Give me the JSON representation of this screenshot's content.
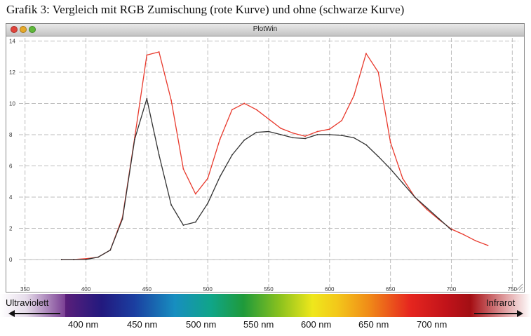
{
  "caption": "Grafik 3: Vergleich mit RGB Zumischung (rote Kurve) und ohne (schwarze Kurve)",
  "window": {
    "title": "PlotWin"
  },
  "colors": {
    "red_curve": "#e8392c",
    "black_curve": "#333333",
    "grid": "#bdbdbd"
  },
  "chart_data": {
    "type": "line",
    "title": "",
    "xlabel": "",
    "ylabel": "",
    "xlim": [
      345,
      755
    ],
    "ylim": [
      -1.8,
      14.2
    ],
    "grid": true,
    "xticks": [
      350,
      400,
      450,
      500,
      550,
      600,
      650,
      700,
      750
    ],
    "yticks": [
      0,
      2,
      4,
      6,
      8,
      10,
      12,
      14
    ],
    "series": [
      {
        "color": "#e8392c",
        "x": [
          380,
          390,
          400,
          410,
          420,
          430,
          440,
          450,
          460,
          470,
          480,
          490,
          500,
          510,
          520,
          530,
          540,
          550,
          560,
          570,
          580,
          590,
          600,
          610,
          620,
          630,
          640,
          650,
          660,
          670,
          680,
          690,
          700,
          710,
          720,
          730
        ],
        "y": [
          0.0,
          0.0,
          0.05,
          0.15,
          0.6,
          2.7,
          7.8,
          13.1,
          13.3,
          10.2,
          5.8,
          4.2,
          5.2,
          7.7,
          9.6,
          10.0,
          9.6,
          9.0,
          8.4,
          8.1,
          7.9,
          8.2,
          8.35,
          8.9,
          10.5,
          13.2,
          12.0,
          7.5,
          5.2,
          4.0,
          3.2,
          2.55,
          1.95,
          1.6,
          1.2,
          0.9
        ]
      },
      {
        "color": "#333333",
        "x": [
          380,
          390,
          400,
          410,
          420,
          430,
          440,
          450,
          460,
          470,
          480,
          490,
          500,
          510,
          520,
          530,
          540,
          550,
          560,
          570,
          580,
          590,
          600,
          610,
          620,
          630,
          640,
          650,
          660,
          670,
          680,
          690,
          700
        ],
        "y": [
          0.0,
          0.0,
          0.0,
          0.15,
          0.6,
          2.6,
          7.7,
          10.3,
          6.7,
          3.5,
          2.2,
          2.4,
          3.6,
          5.3,
          6.7,
          7.65,
          8.15,
          8.2,
          8.0,
          7.8,
          7.75,
          8.0,
          8.0,
          7.95,
          7.8,
          7.35,
          6.6,
          5.8,
          4.9,
          4.0,
          3.3,
          2.6,
          1.9
        ]
      }
    ]
  },
  "spectrum": {
    "left_label": "Ultraviolett",
    "right_label": "Infrarot",
    "nm_labels": [
      "400 nm",
      "450 nm",
      "500 nm",
      "550 nm",
      "600 nm",
      "650 nm",
      "700 nm"
    ]
  }
}
